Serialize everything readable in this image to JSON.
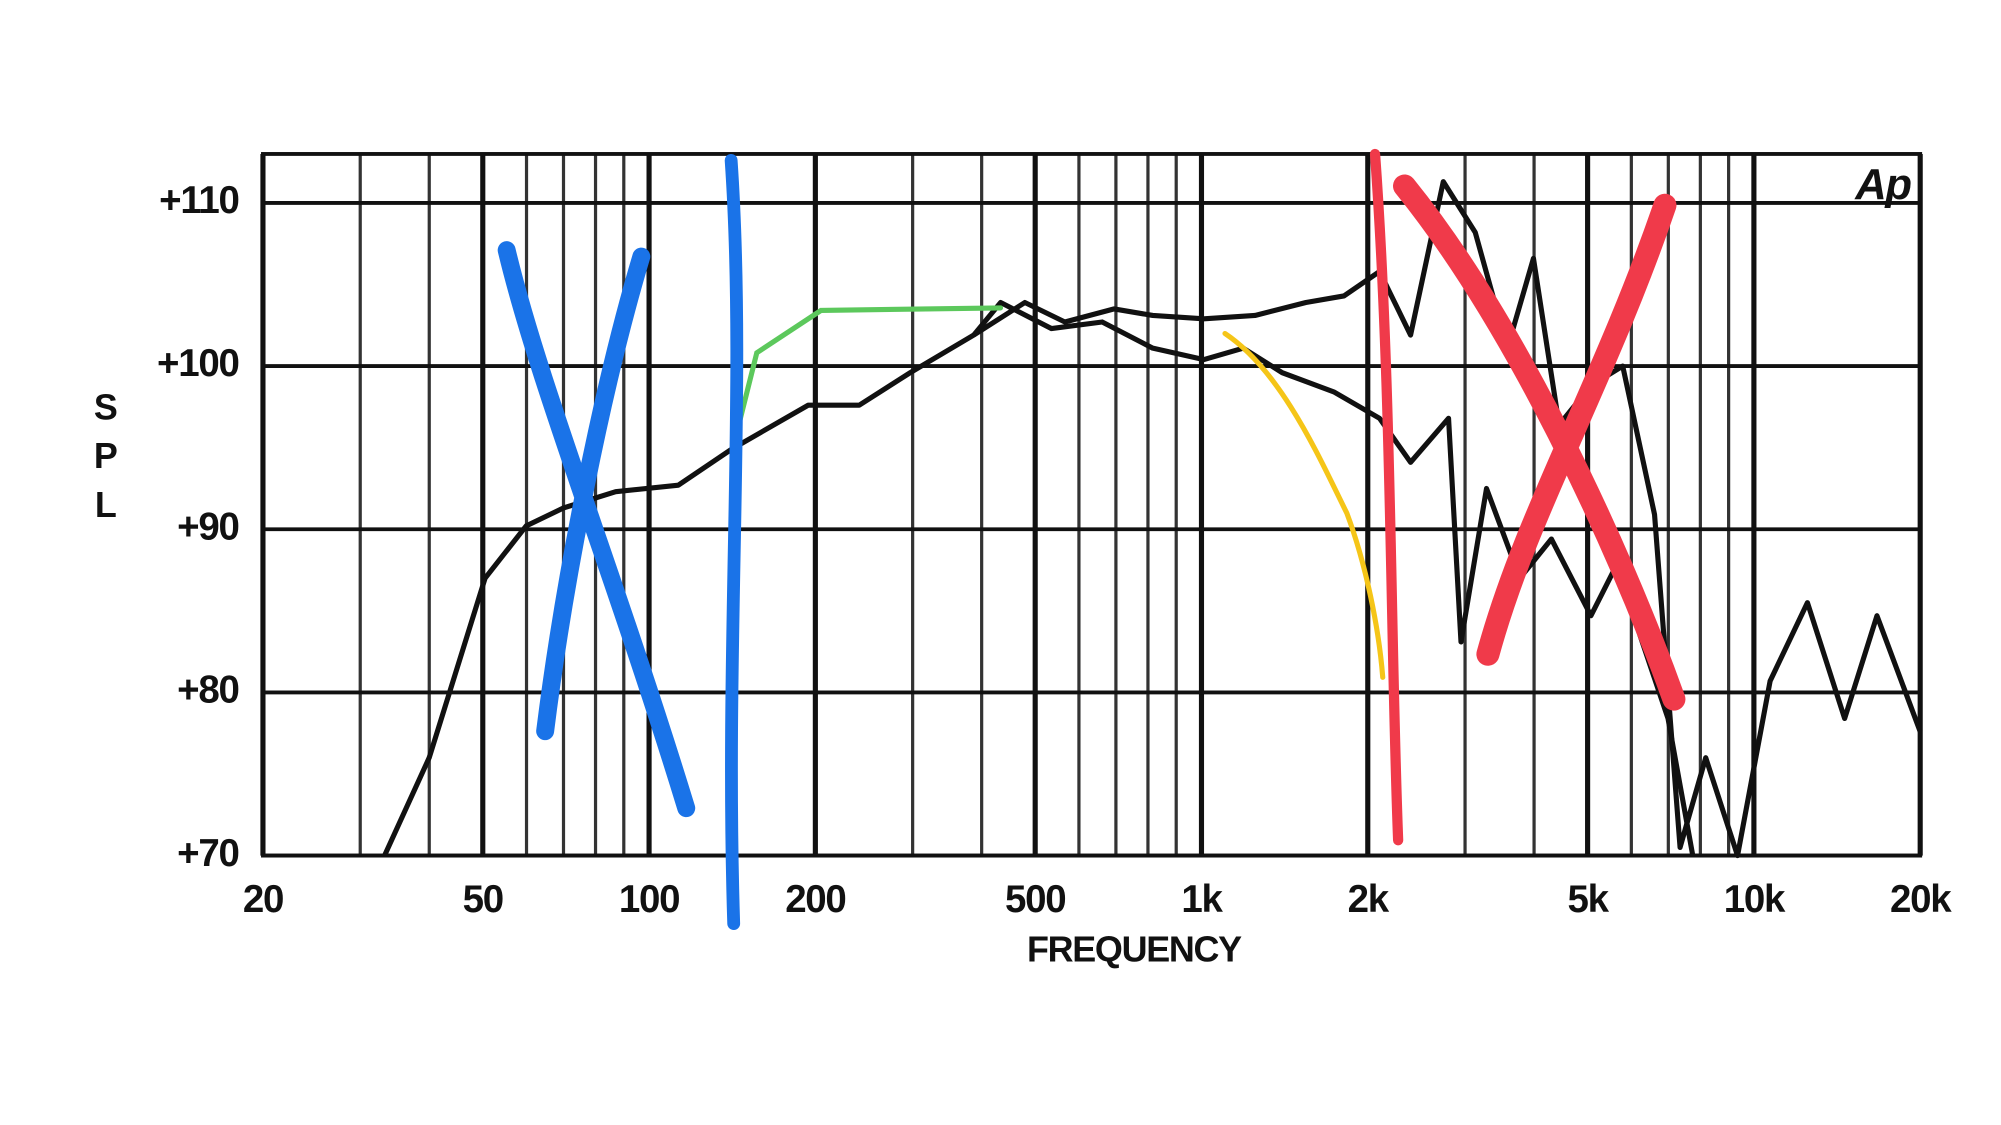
{
  "chart_data": {
    "type": "line",
    "logo": "Ap",
    "y_label": "SPL",
    "x_label": "FREQUENCY",
    "log_x": true,
    "grid": true,
    "xlim": [
      20,
      20000
    ],
    "ylim": [
      70,
      113
    ],
    "xticks": [
      20,
      50,
      100,
      200,
      500,
      {
        "value": 1000,
        "label": "1k"
      },
      {
        "value": 2000,
        "label": "2k"
      },
      {
        "value": 5000,
        "label": "5k"
      },
      {
        "value": 10000,
        "label": "10k"
      },
      {
        "value": 20000,
        "label": "20k"
      }
    ],
    "xminor": [
      30,
      40,
      60,
      70,
      80,
      90,
      300,
      400,
      600,
      700,
      800,
      900,
      3000,
      4000,
      6000,
      7000,
      8000,
      9000
    ],
    "yticks": [
      {
        "value": 70,
        "label": "+70"
      },
      {
        "value": 80,
        "label": "+80"
      },
      {
        "value": 90,
        "label": "+90"
      },
      {
        "value": 100,
        "label": "+100"
      },
      {
        "value": 110,
        "label": "+110"
      }
    ],
    "series": [
      {
        "color": "#111111",
        "x": [
          33.2,
          40,
          50.5,
          59.9,
          70,
          87,
          113,
          141,
          194,
          240,
          297,
          387,
          479,
          566,
          695,
          816,
          1010,
          1250,
          1545,
          1810,
          2100,
          2390,
          2740,
          3130,
          3580,
          3990,
          4440,
          5070,
          5790,
          6610,
          7350,
          8180,
          9340,
          10700,
          12500,
          14600,
          16700,
          20000
        ],
        "values": [
          70,
          76,
          87,
          90.2,
          91.3,
          92.3,
          92.7,
          94.9,
          97.6,
          97.6,
          99.6,
          101.9,
          103.9,
          102.7,
          103.5,
          103.1,
          102.9,
          103.1,
          103.9,
          104.3,
          105.8,
          101.9,
          111.3,
          108.2,
          101.1,
          106.6,
          96.4,
          98.8,
          100,
          90.9,
          70.5,
          76,
          70,
          80.7,
          85.5,
          78.4,
          84.7,
          77.6
        ]
      },
      {
        "color": "#111111",
        "x": [
          387,
          433,
          535,
          661,
          816,
          1010,
          1190,
          1400,
          1740,
          2100,
          2390,
          2800,
          2950,
          3280,
          3770,
          4300,
          5070,
          5640,
          6280,
          6990,
          7750
        ],
        "values": [
          101.9,
          103.9,
          102.3,
          102.7,
          101.1,
          100.4,
          101.1,
          99.6,
          98.4,
          96.8,
          94.1,
          96.8,
          83.1,
          92.5,
          87,
          89.4,
          84.7,
          87.8,
          83.1,
          78.4,
          70
        ]
      }
    ]
  }
}
